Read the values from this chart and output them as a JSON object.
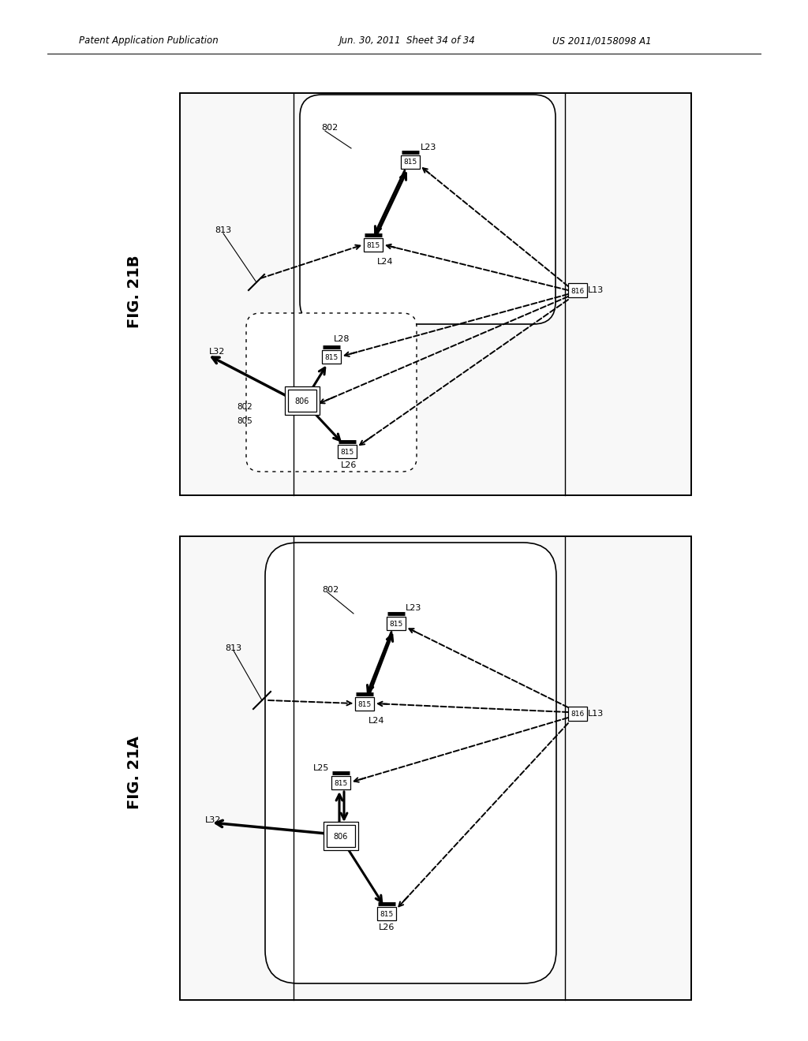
{
  "bg_color": "#ffffff",
  "header_left": "Patent Application Publication",
  "header_mid": "Jun. 30, 2011  Sheet 34 of 34",
  "header_right": "US 2011/0158098 A1"
}
